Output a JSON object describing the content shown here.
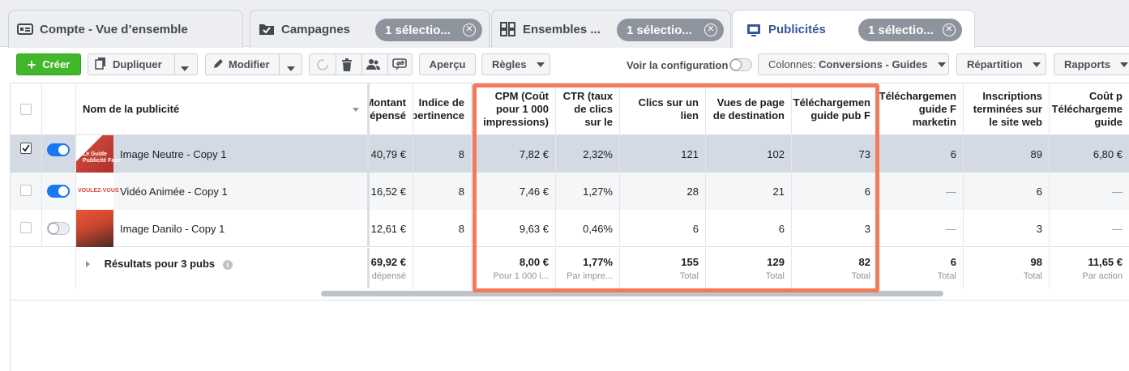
{
  "tabs": [
    {
      "label": "Compte - Vue d’ensemble",
      "icon": "account-overview-icon"
    },
    {
      "label": "Campagnes",
      "icon": "campaign-folder-icon",
      "chip": "1 sélectio..."
    },
    {
      "label": "Ensembles ...",
      "icon": "adsets-grid-icon",
      "chip": "1 sélectio..."
    },
    {
      "label": "Publicités",
      "icon": "ad-screen-icon",
      "chip": "1 sélectio..."
    }
  ],
  "toolbar": {
    "create": "Créer",
    "duplicate": "Dupliquer",
    "edit": "Modifier",
    "preview": "Aperçu",
    "rules": "Règles",
    "view_config": "Voir la configuration",
    "columns_prefix": "Colonnes: ",
    "columns_value": "Conversions - Guides",
    "breakdown": "Répartition",
    "reports": "Rapports"
  },
  "columns": {
    "name": "Nom de la publicité",
    "spend": "Montant\ndépensé",
    "relevance": "Indice de\npertinence",
    "cpm": "CPM (Coût\npour 1 000\nimpressions)",
    "ctr": "CTR (taux\nde clics\nsur le",
    "clicks": "Clics sur un\nlien",
    "landing": "Vues de page\nde destination",
    "dl_fb": "Téléchargemen\nguide pub F",
    "dl_mkt": "Téléchargemen\nguide F\nmarketin",
    "signups": "Inscriptions\nterminées sur\nle site web",
    "cost_dl": "Coût p\nTéléchargeme\nguide"
  },
  "rows": [
    {
      "name": "Image Neutre - Copy 1",
      "thumb_text": "Le Guide\nPublicité Face",
      "selected": true,
      "active": true,
      "spend": "40,79 €",
      "relevance": "8",
      "cpm": "7,82 €",
      "ctr": "2,32%",
      "clicks": "121",
      "landing": "102",
      "dl_fb": "73",
      "dl_mkt": "6",
      "signups": "89",
      "cost_dl": "6,80 €"
    },
    {
      "name": "Vidéo Animée - Copy 1",
      "thumb_text": "VOULEZ-VOUS",
      "selected": false,
      "active": true,
      "spend": "16,52 €",
      "relevance": "8",
      "cpm": "7,46 €",
      "ctr": "1,27%",
      "clicks": "28",
      "landing": "21",
      "dl_fb": "6",
      "dl_mkt": "—",
      "signups": "6",
      "cost_dl": "—"
    },
    {
      "name": "Image Danilo - Copy 1",
      "thumb_text": "",
      "selected": false,
      "active": false,
      "spend": "12,61 €",
      "relevance": "8",
      "cpm": "9,63 €",
      "ctr": "0,46%",
      "clicks": "6",
      "landing": "6",
      "dl_fb": "3",
      "dl_mkt": "—",
      "signups": "3",
      "cost_dl": "—"
    }
  ],
  "totals": {
    "label": "Résultats pour 3 pubs",
    "spend": {
      "v": "69,92 €",
      "s": "dépensé"
    },
    "cpm": {
      "v": "8,00 €",
      "s": "Pour 1 000 i..."
    },
    "ctr": {
      "v": "1,77%",
      "s": "Par impre..."
    },
    "clicks": {
      "v": "155",
      "s": "Total"
    },
    "landing": {
      "v": "129",
      "s": "Total"
    },
    "dl_fb": {
      "v": "82",
      "s": "Total"
    },
    "dl_mkt": {
      "v": "6",
      "s": "Total"
    },
    "signups": {
      "v": "98",
      "s": "Total"
    },
    "cost_dl": {
      "v": "11,65 €",
      "s": "Par action"
    }
  },
  "colors": {
    "accent_blue": "#1877f2",
    "create_green": "#42b72a",
    "highlight_orange": "#f47b5a",
    "selected_row": "#d3dae3",
    "chip_gray": "#8d949e"
  }
}
